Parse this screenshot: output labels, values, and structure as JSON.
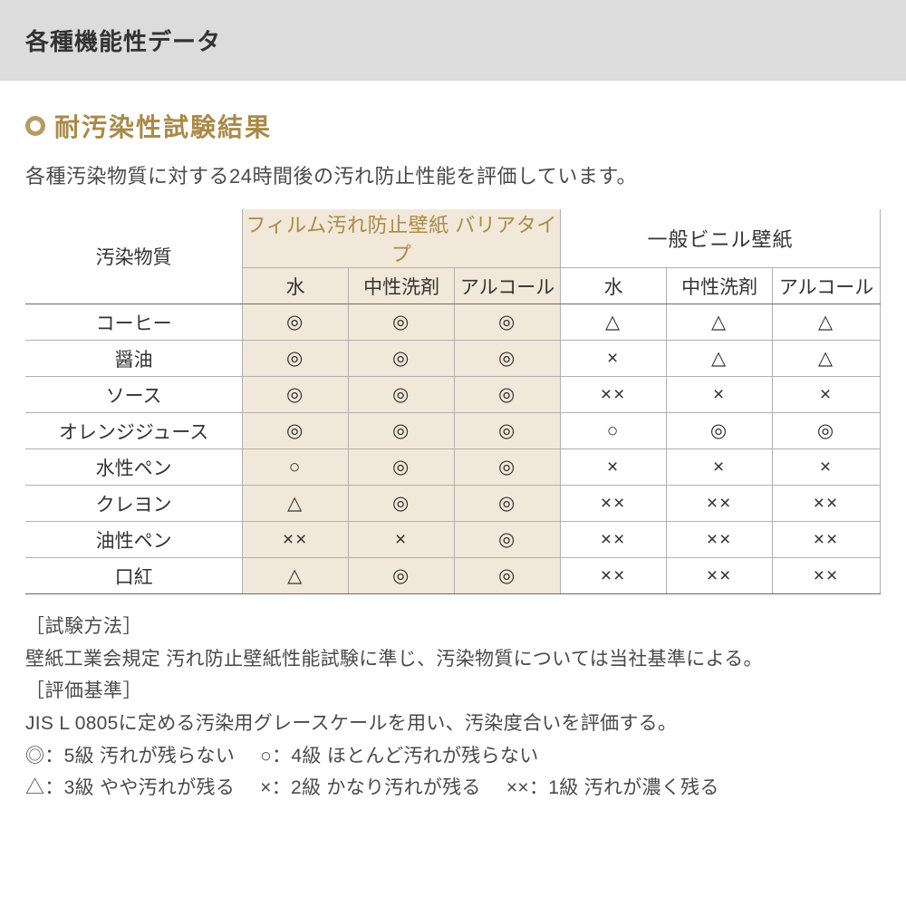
{
  "header": {
    "title": "各種機能性データ"
  },
  "section": {
    "title": "耐汚染性試験結果",
    "subtitle": "各種汚染物質に対する24時間後の汚れ防止性能を評価しています。"
  },
  "colors": {
    "header_bg": "#dcdcdc",
    "accent": "#b79b60",
    "accent_text": "#a98a4a",
    "film_bg": "#f2e8d9",
    "border_strong": "#6b6b6b",
    "border_light": "#b0b0b0",
    "text": "#333333"
  },
  "table": {
    "row_header": "汚染物質",
    "group1": {
      "label": "フィルム汚れ防止壁紙 バリアタイプ",
      "cols": [
        "水",
        "中性洗剤",
        "アルコール"
      ]
    },
    "group2": {
      "label": "一般ビニル壁紙",
      "cols": [
        "水",
        "中性洗剤",
        "アルコール"
      ]
    },
    "rows": [
      {
        "label": "コーヒー",
        "g1": [
          "◎",
          "◎",
          "◎"
        ],
        "g2": [
          "△",
          "△",
          "△"
        ]
      },
      {
        "label": "醤油",
        "g1": [
          "◎",
          "◎",
          "◎"
        ],
        "g2": [
          "×",
          "△",
          "△"
        ]
      },
      {
        "label": "ソース",
        "g1": [
          "◎",
          "◎",
          "◎"
        ],
        "g2": [
          "××",
          "×",
          "×"
        ]
      },
      {
        "label": "オレンジジュース",
        "g1": [
          "◎",
          "◎",
          "◎"
        ],
        "g2": [
          "○",
          "◎",
          "◎"
        ]
      },
      {
        "label": "水性ペン",
        "g1": [
          "○",
          "◎",
          "◎"
        ],
        "g2": [
          "×",
          "×",
          "×"
        ]
      },
      {
        "label": "クレヨン",
        "g1": [
          "△",
          "◎",
          "◎"
        ],
        "g2": [
          "××",
          "××",
          "××"
        ]
      },
      {
        "label": "油性ペン",
        "g1": [
          "××",
          "×",
          "◎"
        ],
        "g2": [
          "××",
          "××",
          "××"
        ]
      },
      {
        "label": "口紅",
        "g1": [
          "△",
          "◎",
          "◎"
        ],
        "g2": [
          "××",
          "××",
          "××"
        ]
      }
    ]
  },
  "notes": {
    "method_label": "［試験方法］",
    "method_text": "壁紙工業会規定 汚れ防止壁紙性能試験に準じ、汚染物質については当社基準による。",
    "criteria_label": "［評価基準］",
    "criteria_text": "JIS L 0805に定める汚染用グレースケールを用い、汚染度合いを評価する。",
    "legend1a": "◎：5級 汚れが残らない",
    "legend1b": "○：4級 ほとんど汚れが残らない",
    "legend2a": "△：3級 やや汚れが残る",
    "legend2b": "×：2級 かなり汚れが残る",
    "legend2c": "××：1級 汚れが濃く残る"
  }
}
